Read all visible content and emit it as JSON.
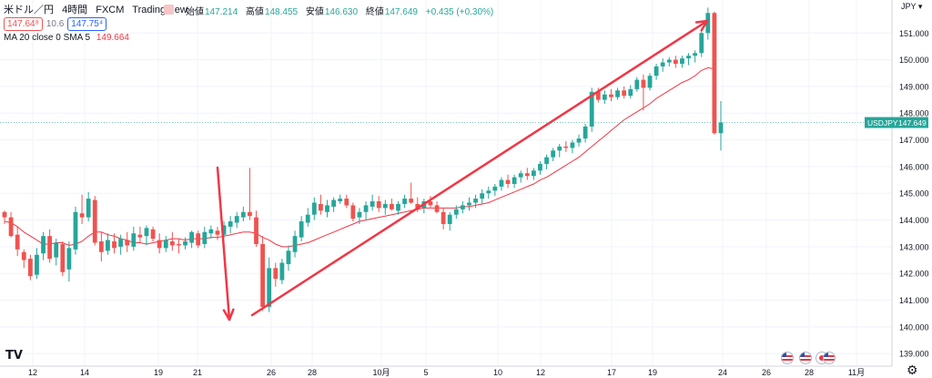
{
  "header": {
    "symbol": "米ドル／円",
    "interval": "4時間",
    "broker": "FXCM",
    "platform": "TradingView",
    "open_label": "始値",
    "open": "147.214",
    "high_label": "高値",
    "high": "148.455",
    "low_label": "安値",
    "low": "146.630",
    "close_label": "終値",
    "close": "147.649",
    "change": "+0.435 (+0.30%)",
    "sell_price": "147.64⁸",
    "spread": "10.6",
    "buy_price": "147.75⁴",
    "ma_label": "MA 20 close 0 SMA 5",
    "ma_value": "149.664",
    "currency": "JPY",
    "price_tag_symbol": "USDJPY",
    "price_tag_value": "147.649",
    "logo": "TV"
  },
  "colors": {
    "up": "#26a69a",
    "down": "#ef5350",
    "ma": "#f23645",
    "arrow": "#f23645",
    "tag_bg": "#26a69a"
  },
  "icons": [
    "us-flag-icon",
    "us-flag-icon",
    "jp-flag-icon",
    "us-flag-icon",
    "settings-gear-icon"
  ],
  "chart_data": {
    "type": "candlestick",
    "title": "",
    "xlabel": "",
    "ylabel": "",
    "ylim": [
      138.6,
      152.1
    ],
    "y_ticks": [
      "139.000",
      "140.000",
      "141.000",
      "142.000",
      "143.000",
      "144.000",
      "145.000",
      "146.000",
      "147.000",
      "148.000",
      "149.000",
      "150.000",
      "151.000"
    ],
    "x_ticks": [
      "12",
      "14",
      "19",
      "21",
      "26",
      "28",
      "10月",
      "5",
      "10",
      "12",
      "17",
      "19",
      "24",
      "26",
      "28",
      "11月"
    ],
    "grid": true,
    "last_price": 147.649,
    "ohlc": [
      [
        144.3,
        144.35,
        143.85,
        144.1
      ],
      [
        144.1,
        144.3,
        143.35,
        143.4
      ],
      [
        143.45,
        143.75,
        142.65,
        142.9
      ],
      [
        142.8,
        142.9,
        142.2,
        142.5
      ],
      [
        142.55,
        142.7,
        141.75,
        141.9
      ],
      [
        141.95,
        142.95,
        141.8,
        142.7
      ],
      [
        142.75,
        143.55,
        142.5,
        143.4
      ],
      [
        143.4,
        143.65,
        142.4,
        142.55
      ],
      [
        142.6,
        143.3,
        142.3,
        143.15
      ],
      [
        143.1,
        143.2,
        141.9,
        142.05
      ],
      [
        142.15,
        143.2,
        141.7,
        142.95
      ],
      [
        142.9,
        144.5,
        142.7,
        144.3
      ],
      [
        144.25,
        144.95,
        143.85,
        144.1
      ],
      [
        144.1,
        145.05,
        143.95,
        144.8
      ],
      [
        144.75,
        144.9,
        143.05,
        143.15
      ],
      [
        143.2,
        143.55,
        142.45,
        142.8
      ],
      [
        142.85,
        143.5,
        142.7,
        143.25
      ],
      [
        143.2,
        143.5,
        142.75,
        142.95
      ],
      [
        143.0,
        143.45,
        142.7,
        143.3
      ],
      [
        143.25,
        143.55,
        142.8,
        143.05
      ],
      [
        143.0,
        143.75,
        142.85,
        143.5
      ],
      [
        143.45,
        143.75,
        143.15,
        143.35
      ],
      [
        143.4,
        143.8,
        143.05,
        143.7
      ],
      [
        143.65,
        143.75,
        143.2,
        143.3
      ],
      [
        143.25,
        143.5,
        142.75,
        142.95
      ],
      [
        142.95,
        143.4,
        142.8,
        143.25
      ],
      [
        143.2,
        143.55,
        142.85,
        143.05
      ],
      [
        143.1,
        143.3,
        142.75,
        143.05
      ],
      [
        143.05,
        143.35,
        142.9,
        143.2
      ],
      [
        143.15,
        143.6,
        142.95,
        143.55
      ],
      [
        143.5,
        143.6,
        142.95,
        143.05
      ],
      [
        143.1,
        143.75,
        142.95,
        143.55
      ],
      [
        143.5,
        143.8,
        143.3,
        143.65
      ],
      [
        143.6,
        143.75,
        143.25,
        143.45
      ],
      [
        143.45,
        143.95,
        143.3,
        143.8
      ],
      [
        143.75,
        144.15,
        143.5,
        143.95
      ],
      [
        143.9,
        144.3,
        143.7,
        144.15
      ],
      [
        144.1,
        144.5,
        143.95,
        144.3
      ],
      [
        144.3,
        145.95,
        144.0,
        144.15
      ],
      [
        144.1,
        144.35,
        143.0,
        143.1
      ],
      [
        143.1,
        143.4,
        140.6,
        140.75
      ],
      [
        140.75,
        142.6,
        140.55,
        142.2
      ],
      [
        142.2,
        142.4,
        141.5,
        141.8
      ],
      [
        141.75,
        142.55,
        141.6,
        142.4
      ],
      [
        142.35,
        143.05,
        142.1,
        142.85
      ],
      [
        142.8,
        143.6,
        142.6,
        143.4
      ],
      [
        143.35,
        144.15,
        143.2,
        143.95
      ],
      [
        143.9,
        144.45,
        143.75,
        144.2
      ],
      [
        144.2,
        144.85,
        144.0,
        144.65
      ],
      [
        144.6,
        144.95,
        144.2,
        144.35
      ],
      [
        144.3,
        144.75,
        144.1,
        144.55
      ],
      [
        144.5,
        144.85,
        144.3,
        144.75
      ],
      [
        144.7,
        144.95,
        144.6,
        144.8
      ],
      [
        144.8,
        144.95,
        144.45,
        144.55
      ],
      [
        144.55,
        144.65,
        143.95,
        144.05
      ],
      [
        144.1,
        144.45,
        143.85,
        144.3
      ],
      [
        144.3,
        144.7,
        144.0,
        144.55
      ],
      [
        144.5,
        144.95,
        144.35,
        144.7
      ],
      [
        144.7,
        144.9,
        144.3,
        144.45
      ],
      [
        144.45,
        144.75,
        144.2,
        144.6
      ],
      [
        144.6,
        144.8,
        144.35,
        144.4
      ],
      [
        144.35,
        144.7,
        144.2,
        144.6
      ],
      [
        144.6,
        144.95,
        144.45,
        144.8
      ],
      [
        144.8,
        145.4,
        144.6,
        144.65
      ],
      [
        144.6,
        144.85,
        144.3,
        144.45
      ],
      [
        144.45,
        144.8,
        144.25,
        144.7
      ],
      [
        144.7,
        144.9,
        144.45,
        144.55
      ],
      [
        144.55,
        144.7,
        144.25,
        144.3
      ],
      [
        144.3,
        144.45,
        143.65,
        143.85
      ],
      [
        143.85,
        144.3,
        143.6,
        144.2
      ],
      [
        144.2,
        144.55,
        144.05,
        144.4
      ],
      [
        144.4,
        144.7,
        144.25,
        144.55
      ],
      [
        144.55,
        144.85,
        144.35,
        144.65
      ],
      [
        144.65,
        144.95,
        144.45,
        144.8
      ],
      [
        144.8,
        145.15,
        144.6,
        145.0
      ],
      [
        145.0,
        145.25,
        144.8,
        145.1
      ],
      [
        145.1,
        145.35,
        144.9,
        145.25
      ],
      [
        145.25,
        145.6,
        145.1,
        145.5
      ],
      [
        145.5,
        145.7,
        145.2,
        145.35
      ],
      [
        145.35,
        145.7,
        145.2,
        145.6
      ],
      [
        145.6,
        145.85,
        145.4,
        145.75
      ],
      [
        145.75,
        145.95,
        145.5,
        145.65
      ],
      [
        145.65,
        145.95,
        145.5,
        145.85
      ],
      [
        145.85,
        146.2,
        145.7,
        146.1
      ],
      [
        146.1,
        146.45,
        145.9,
        146.35
      ],
      [
        146.35,
        146.7,
        146.2,
        146.6
      ],
      [
        146.6,
        146.85,
        146.35,
        146.75
      ],
      [
        146.75,
        146.95,
        146.55,
        146.7
      ],
      [
        146.7,
        147.0,
        146.5,
        146.9
      ],
      [
        146.9,
        147.2,
        146.75,
        147.05
      ],
      [
        147.05,
        147.6,
        146.9,
        147.5
      ],
      [
        147.5,
        148.95,
        147.3,
        148.8
      ],
      [
        148.8,
        148.95,
        148.4,
        148.5
      ],
      [
        148.5,
        148.85,
        148.35,
        148.7
      ],
      [
        148.7,
        148.9,
        148.45,
        148.6
      ],
      [
        148.6,
        148.95,
        148.5,
        148.85
      ],
      [
        148.85,
        149.0,
        148.55,
        148.65
      ],
      [
        148.65,
        149.05,
        148.55,
        148.9
      ],
      [
        148.9,
        149.35,
        148.8,
        149.25
      ],
      [
        149.25,
        149.45,
        148.1,
        148.95
      ],
      [
        148.95,
        149.5,
        148.85,
        149.4
      ],
      [
        149.4,
        149.85,
        149.25,
        149.75
      ],
      [
        149.75,
        150.05,
        149.55,
        149.9
      ],
      [
        149.9,
        150.1,
        149.75,
        150.0
      ],
      [
        150.0,
        150.15,
        149.7,
        149.85
      ],
      [
        149.85,
        150.15,
        149.7,
        150.05
      ],
      [
        150.05,
        150.25,
        149.8,
        150.15
      ],
      [
        150.15,
        150.35,
        149.9,
        150.25
      ],
      [
        150.25,
        151.15,
        150.1,
        151.0
      ],
      [
        151.0,
        151.95,
        150.75,
        151.75
      ],
      [
        151.75,
        151.8,
        147.2,
        147.25
      ],
      [
        147.25,
        148.45,
        146.6,
        147.65
      ]
    ],
    "ma20": [
      143.95,
      143.9,
      143.75,
      143.55,
      143.4,
      143.25,
      143.1,
      143.1,
      143.15,
      143.15,
      143.05,
      143.1,
      143.2,
      143.4,
      143.55,
      143.55,
      143.45,
      143.4,
      143.3,
      143.25,
      143.15,
      143.15,
      143.1,
      143.15,
      143.2,
      143.25,
      143.3,
      143.3,
      143.25,
      143.3,
      143.3,
      143.3,
      143.35,
      143.35,
      143.4,
      143.45,
      143.5,
      143.55,
      143.55,
      143.5,
      143.35,
      143.25,
      143.1,
      143.0,
      143.0,
      143.05,
      143.1,
      143.15,
      143.25,
      143.35,
      143.45,
      143.55,
      143.65,
      143.75,
      143.85,
      143.95,
      144.0,
      144.05,
      144.1,
      144.15,
      144.2,
      144.25,
      144.3,
      144.35,
      144.4,
      144.45,
      144.45,
      144.45,
      144.45,
      144.45,
      144.45,
      144.5,
      144.5,
      144.55,
      144.6,
      144.65,
      144.75,
      144.85,
      144.95,
      145.05,
      145.15,
      145.25,
      145.35,
      145.5,
      145.6,
      145.75,
      145.9,
      146.05,
      146.2,
      146.35,
      146.55,
      146.75,
      146.95,
      147.15,
      147.35,
      147.55,
      147.75,
      147.9,
      148.05,
      148.2,
      148.35,
      148.55,
      148.7,
      148.85,
      149.0,
      149.15,
      149.25,
      149.4,
      149.6,
      149.7,
      149.66
    ]
  }
}
